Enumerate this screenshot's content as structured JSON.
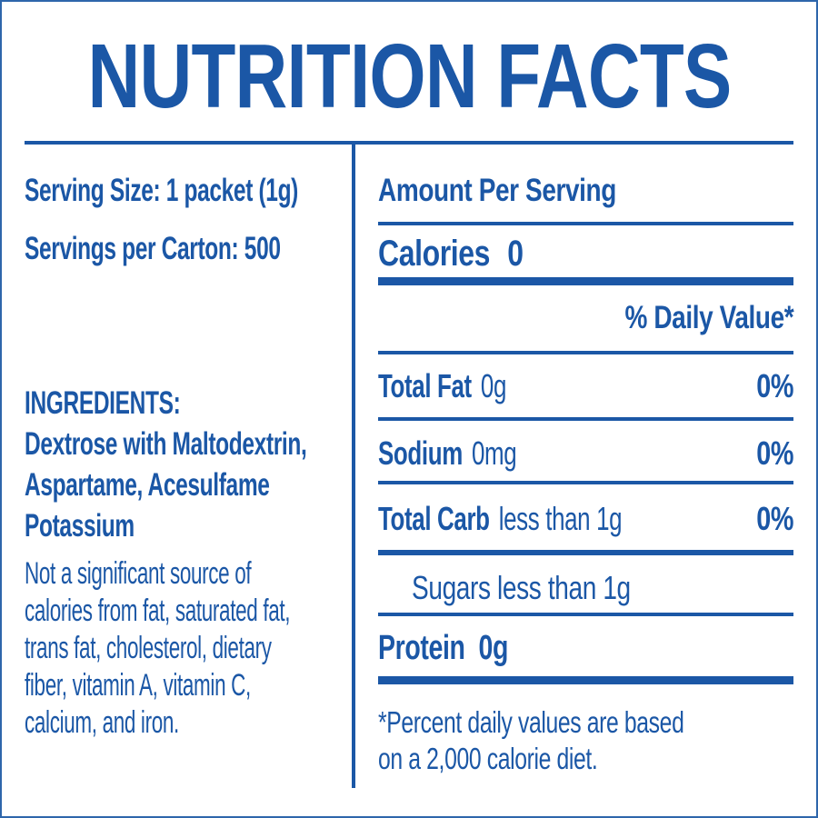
{
  "accent_color": "#1B57A6",
  "title": "NUTRITION FACTS",
  "serving": {
    "serving_size": "Serving Size: 1 packet (1g)",
    "servings_per_carton": "Servings per Carton: 500"
  },
  "ingredients": {
    "heading": "INGREDIENTS:",
    "lines": [
      "Dextrose with Maltodextrin,",
      "Aspartame, Acesulfame",
      "Potassium"
    ]
  },
  "disclaimer": {
    "lines": [
      "Not a significant source of",
      "calories from fat, saturated fat,",
      "trans fat, cholesterol, dietary",
      "fiber, vitamin A, vitamin C,",
      "calcium, and iron."
    ]
  },
  "panel": {
    "amount_per_serving": "Amount Per Serving",
    "calories_label": "Calories",
    "calories_value": "0",
    "daily_value_header": "% Daily Value*",
    "rows": [
      {
        "name": "Total Fat",
        "amount": "0g",
        "dv": "0%"
      },
      {
        "name": "Sodium",
        "amount": "0mg",
        "dv": "0%"
      },
      {
        "name": "Total Carb",
        "amount": "less than 1g",
        "dv": "0%"
      }
    ],
    "sugars": "Sugars less than 1g",
    "protein_label": "Protein",
    "protein_value": "0g",
    "footnote_lines": [
      "*Percent daily values are based",
      "on a 2,000 calorie diet."
    ]
  }
}
